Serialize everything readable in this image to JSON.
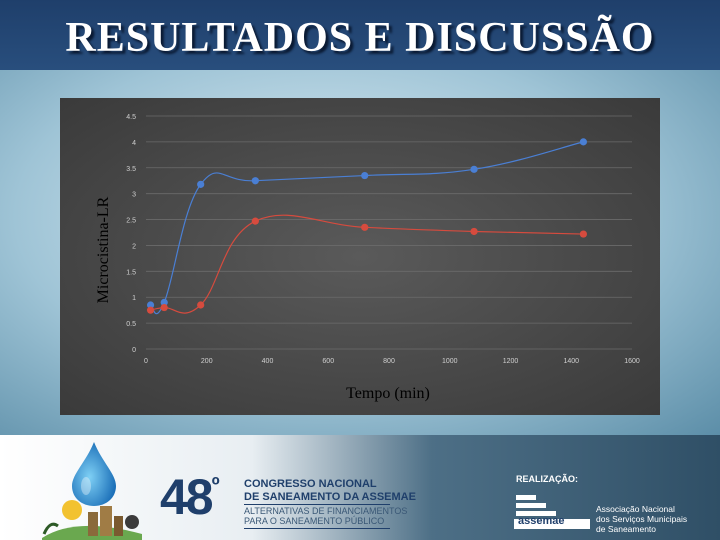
{
  "slide": {
    "title": "RESULTADOS E DISCUSSÃO"
  },
  "chart_data": {
    "type": "scatter",
    "ylabel": "Microcistina-LR",
    "xlabel": "Tempo (min)",
    "xlim": [
      0,
      1600
    ],
    "ylim": [
      0,
      4.5
    ],
    "x_ticks": [
      "0",
      "200",
      "400",
      "600",
      "800",
      "1000",
      "1200",
      "1400",
      "1600"
    ],
    "y_ticks": [
      "0",
      "0.5",
      "1",
      "1.5",
      "2",
      "2.5",
      "3",
      "3.5",
      "4",
      "4.5"
    ],
    "grid": true,
    "smooth_lines": true,
    "series": [
      {
        "color": "#4a7fd4",
        "x": [
          15,
          60,
          180,
          360,
          720,
          1080,
          1440
        ],
        "y": [
          0.85,
          0.9,
          3.18,
          3.25,
          3.35,
          3.47,
          4.0
        ]
      },
      {
        "color": "#d64b3e",
        "x": [
          15,
          60,
          180,
          360,
          720,
          1080,
          1440
        ],
        "y": [
          0.75,
          0.8,
          0.85,
          2.47,
          2.35,
          2.27,
          2.22
        ]
      }
    ]
  },
  "footer": {
    "edition": "48",
    "edition_suffix": "º",
    "congress_line1": "CONGRESSO NACIONAL",
    "congress_line2": "DE SANEAMENTO DA ASSEMAE",
    "congress_line3": "ALTERNATIVAS DE FINANCIAMENTOS",
    "congress_line4": "PARA O SANEAMENTO PÚBLICO",
    "realizacao": "REALIZAÇÃO:",
    "assemae": "assemae",
    "assoc_line1": "Associação Nacional",
    "assoc_line2": "dos Serviços Municipais",
    "assoc_line3": "de Saneamento"
  }
}
